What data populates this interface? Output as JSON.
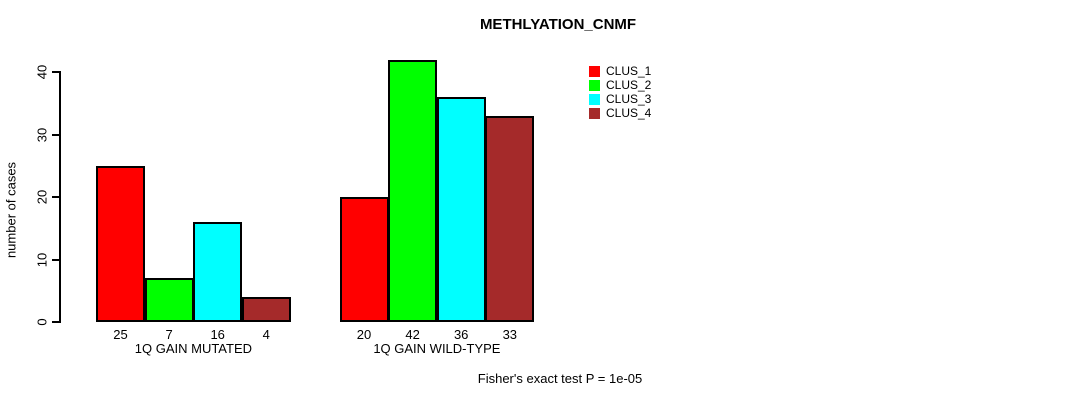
{
  "title": "METHLYATION_CNMF",
  "footer": "Fisher's exact test P = 1e-05",
  "y_axis": {
    "label": "number of cases",
    "ticks": [
      "0",
      "10",
      "20",
      "30",
      "40"
    ]
  },
  "legend": {
    "items": [
      {
        "label": "CLUS_1",
        "color": "#FF0000"
      },
      {
        "label": "CLUS_2",
        "color": "#00FF00"
      },
      {
        "label": "CLUS_3",
        "color": "#00FFFF"
      },
      {
        "label": "CLUS_4",
        "color": "#A52A2A"
      }
    ]
  },
  "chart_data": {
    "type": "bar",
    "title": "METHLYATION_CNMF",
    "xlabel": "",
    "ylabel": "number of cases",
    "ylim": [
      0,
      40
    ],
    "yticks": [
      0,
      10,
      20,
      30,
      40
    ],
    "grid": false,
    "legend_position": "top-right",
    "bar_value_labels": true,
    "categories": [
      "1Q GAIN MUTATED",
      "1Q GAIN WILD-TYPE"
    ],
    "series": [
      {
        "name": "CLUS_1",
        "color": "#FF0000",
        "values": [
          25,
          20
        ]
      },
      {
        "name": "CLUS_2",
        "color": "#00FF00",
        "values": [
          7,
          42
        ]
      },
      {
        "name": "CLUS_3",
        "color": "#00FFFF",
        "values": [
          16,
          36
        ]
      },
      {
        "name": "CLUS_4",
        "color": "#A52A2A",
        "values": [
          4,
          33
        ]
      }
    ],
    "annotation": "Fisher's exact test P = 1e-05"
  }
}
